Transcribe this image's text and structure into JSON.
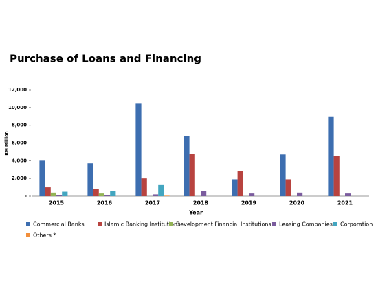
{
  "chart_data": {
    "type": "bar",
    "title": "Purchase of Loans and Financing",
    "x_label": "Year",
    "y_label": "RM Million",
    "categories": [
      "2015",
      "2016",
      "2017",
      "2018",
      "2019",
      "2020",
      "2021"
    ],
    "series": [
      {
        "name": "Commercial Banks",
        "color": "#3d6eb0",
        "values": [
          4000,
          3700,
          10500,
          6800,
          1900,
          4700,
          9000
        ]
      },
      {
        "name": "Islamic Banking Institutions",
        "color": "#b8433f",
        "values": [
          1000,
          850,
          2000,
          4750,
          2800,
          1900,
          4500
        ]
      },
      {
        "name": "Development Financial Institutions",
        "color": "#93b355",
        "values": [
          400,
          300,
          0,
          0,
          0,
          0,
          0
        ]
      },
      {
        "name": "Leasing Companies",
        "color": "#7b5c9e",
        "values": [
          100,
          100,
          200,
          550,
          300,
          400,
          300
        ]
      },
      {
        "name": "Corporation",
        "color": "#43a6c0",
        "values": [
          500,
          600,
          1250,
          0,
          0,
          0,
          0
        ]
      },
      {
        "name": "Others *",
        "color": "#f28f3c",
        "values": [
          0,
          0,
          50,
          0,
          0,
          0,
          0
        ]
      }
    ],
    "ylim": [
      0,
      12000
    ],
    "yticks": [
      {
        "value": 0,
        "label": "-"
      },
      {
        "value": 2000,
        "label": "2,000"
      },
      {
        "value": 4000,
        "label": "4,000"
      },
      {
        "value": 6000,
        "label": "6,000"
      },
      {
        "value": 8000,
        "label": "8,000"
      },
      {
        "value": 10000,
        "label": "10,000"
      },
      {
        "value": 12000,
        "label": "12,000"
      }
    ]
  }
}
